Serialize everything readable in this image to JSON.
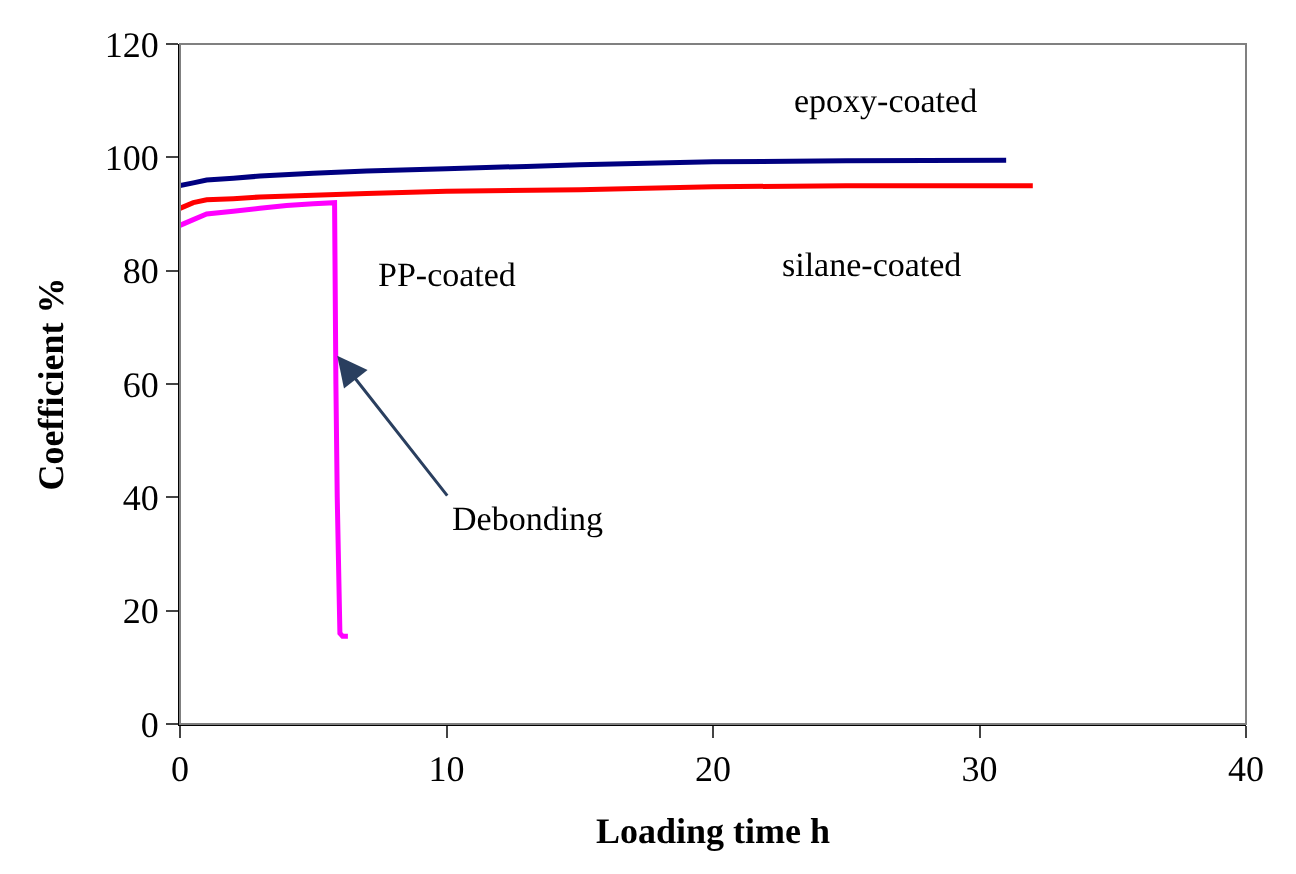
{
  "chart_data": {
    "type": "line",
    "xlabel": "Loading time h",
    "ylabel": "Coefficient %",
    "xlim": [
      0,
      40
    ],
    "ylim": [
      0,
      120
    ],
    "xticks": [
      0,
      10,
      20,
      30,
      40
    ],
    "yticks": [
      0,
      20,
      40,
      60,
      80,
      100,
      120
    ],
    "legend": false,
    "marker": "none",
    "line_style": "solid",
    "series": [
      {
        "name": "epoxy-coated",
        "color": "#000080",
        "x": [
          0,
          0.5,
          1,
          2,
          3,
          5,
          7,
          10,
          13,
          15,
          20,
          25,
          31
        ],
        "values": [
          95,
          95.5,
          96,
          96.3,
          96.7,
          97.2,
          97.6,
          98,
          98.4,
          98.7,
          99.2,
          99.4,
          99.5
        ]
      },
      {
        "name": "silane-coated",
        "color": "#ff0000",
        "x": [
          0,
          0.5,
          1,
          2,
          3,
          5,
          7,
          10,
          15,
          20,
          25,
          32
        ],
        "values": [
          91,
          92,
          92.5,
          92.7,
          93,
          93.3,
          93.6,
          94,
          94.3,
          94.8,
          95,
          95
        ]
      },
      {
        "name": "PP-coated",
        "color": "#ff00ff",
        "x": [
          0,
          0.5,
          1,
          2,
          3,
          4,
          5,
          5.8,
          5.85,
          5.9,
          6,
          6.1,
          6.3
        ],
        "values": [
          88,
          89,
          90,
          90.5,
          91,
          91.5,
          91.8,
          92,
          60,
          40,
          16,
          15.5,
          15.5
        ]
      }
    ],
    "annotations": [
      {
        "text": "Debonding",
        "x": 5.9,
        "y": 65
      }
    ]
  }
}
